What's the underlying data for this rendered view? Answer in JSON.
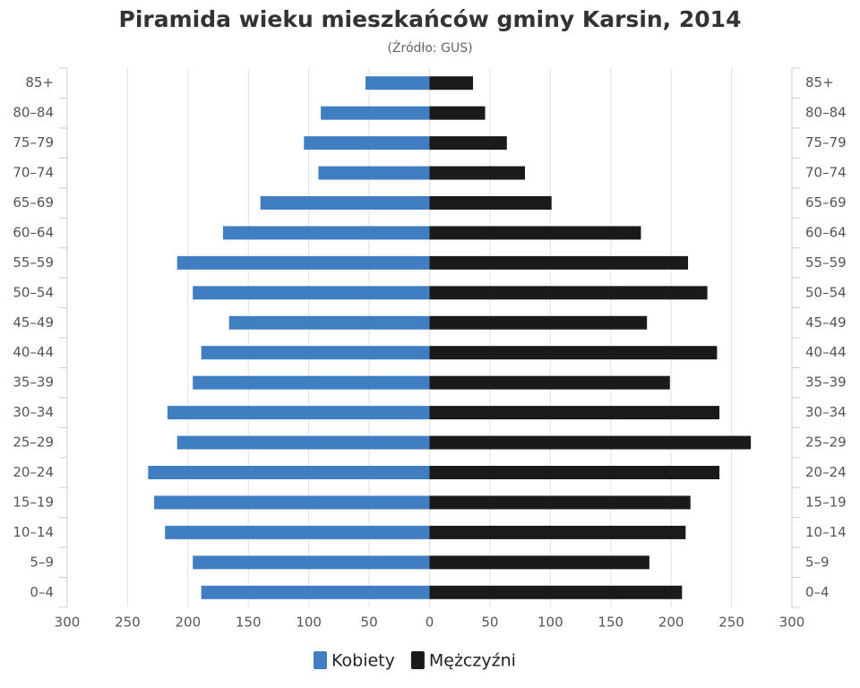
{
  "chart_data": {
    "type": "pyramid",
    "title": "Piramida wieku mieszkańców gminy Karsin, 2014",
    "subtitle": "(Źródło: GUS)",
    "categories": [
      "85+",
      "80–84",
      "75–79",
      "70–74",
      "65–69",
      "60–64",
      "55–59",
      "50–54",
      "45–49",
      "40–44",
      "35–39",
      "30–34",
      "25–29",
      "20–24",
      "15–19",
      "10–14",
      "5–9",
      "0–4"
    ],
    "series": [
      {
        "name": "Kobiety",
        "color": "#3f7ec0",
        "values": [
          -53,
          -90,
          -104,
          -92,
          -140,
          -171,
          -209,
          -196,
          -166,
          -189,
          -196,
          -217,
          -209,
          -233,
          -228,
          -219,
          -196,
          -189
        ]
      },
      {
        "name": "Mężczyźni",
        "color": "#1a1a1a",
        "values": [
          36,
          46,
          64,
          79,
          101,
          175,
          214,
          230,
          180,
          238,
          199,
          240,
          266,
          240,
          216,
          212,
          182,
          209
        ]
      }
    ],
    "xlim": [
      -300,
      300
    ],
    "xticks": [
      {
        "value": -300,
        "label": "300"
      },
      {
        "value": -250,
        "label": "250"
      },
      {
        "value": -200,
        "label": "200"
      },
      {
        "value": -150,
        "label": "150"
      },
      {
        "value": -100,
        "label": "100"
      },
      {
        "value": -50,
        "label": "50"
      },
      0,
      50,
      100,
      150,
      200,
      250,
      300
    ],
    "grid": true,
    "legend": "bottom"
  }
}
